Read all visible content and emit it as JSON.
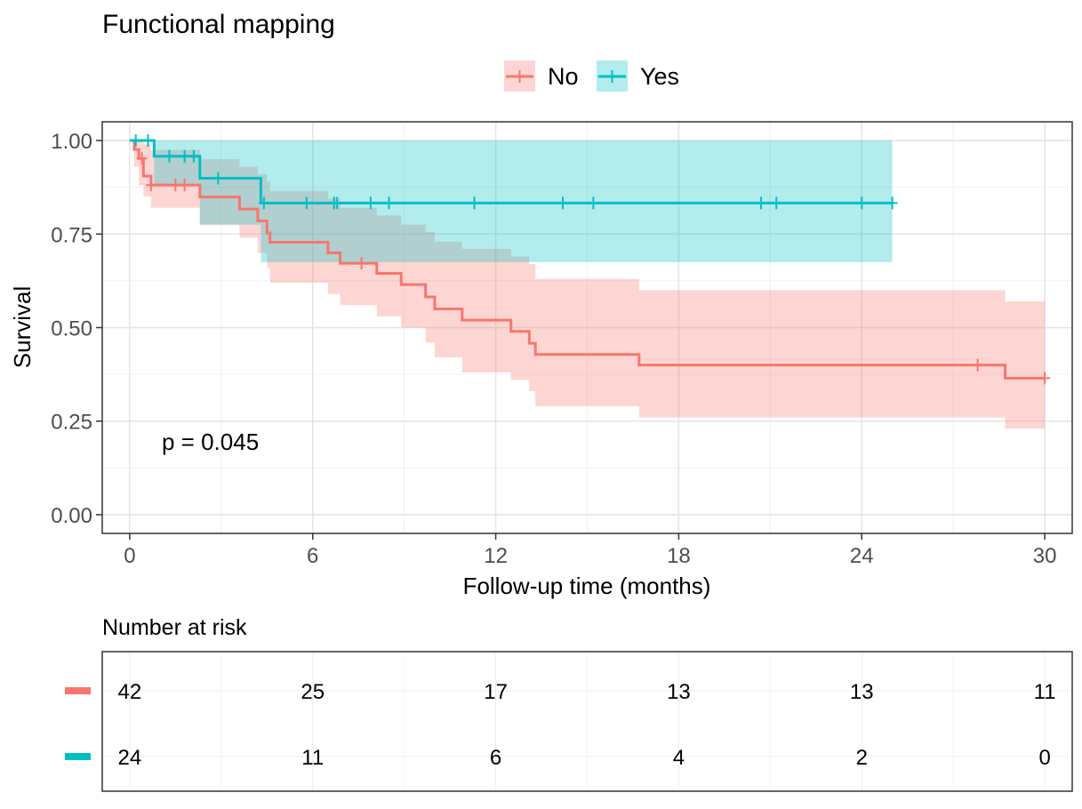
{
  "chart_data": {
    "type": "line",
    "title": "Functional mapping",
    "xlabel": "Follow-up time (months)",
    "ylabel": "Survival",
    "xlim": [
      -0.9,
      30.9
    ],
    "ylim": [
      -0.05,
      1.05
    ],
    "xticks": [
      0,
      6,
      12,
      18,
      24,
      30
    ],
    "xtick_labels": [
      "0",
      "6",
      "12",
      "18",
      "24",
      "30"
    ],
    "yticks": [
      0,
      0.25,
      0.5,
      0.75,
      1.0
    ],
    "ytick_labels": [
      "0.00",
      "0.25",
      "0.50",
      "0.75",
      "1.00"
    ],
    "grid": true,
    "legend_position": "top",
    "pvalue_text": "p = 0.045",
    "series": [
      {
        "name": "No",
        "color": "#F8766D",
        "steps": [
          [
            0,
            1.0
          ],
          [
            0.15,
            0.976
          ],
          [
            0.3,
            0.952
          ],
          [
            0.45,
            0.905
          ],
          [
            0.7,
            0.881
          ],
          [
            2.3,
            0.849
          ],
          [
            3.6,
            0.817
          ],
          [
            4.2,
            0.785
          ],
          [
            4.5,
            0.753
          ],
          [
            4.6,
            0.728
          ],
          [
            6.5,
            0.7
          ],
          [
            6.9,
            0.672
          ],
          [
            8.1,
            0.645
          ],
          [
            8.9,
            0.615
          ],
          [
            9.7,
            0.582
          ],
          [
            10.0,
            0.55
          ],
          [
            10.9,
            0.52
          ],
          [
            12.5,
            0.49
          ],
          [
            13.1,
            0.458
          ],
          [
            13.3,
            0.428
          ],
          [
            16.7,
            0.4
          ],
          [
            28.7,
            0.365
          ]
        ],
        "ci_lower": [
          [
            0,
            1.0
          ],
          [
            0.15,
            0.93
          ],
          [
            0.3,
            0.88
          ],
          [
            0.45,
            0.85
          ],
          [
            0.7,
            0.82
          ],
          [
            2.3,
            0.775
          ],
          [
            3.6,
            0.74
          ],
          [
            4.2,
            0.7
          ],
          [
            4.5,
            0.66
          ],
          [
            4.6,
            0.62
          ],
          [
            6.5,
            0.59
          ],
          [
            6.9,
            0.56
          ],
          [
            8.1,
            0.53
          ],
          [
            8.9,
            0.5
          ],
          [
            9.7,
            0.46
          ],
          [
            10.0,
            0.42
          ],
          [
            10.9,
            0.38
          ],
          [
            12.5,
            0.36
          ],
          [
            13.1,
            0.33
          ],
          [
            13.3,
            0.29
          ],
          [
            16.7,
            0.26
          ],
          [
            28.7,
            0.23
          ]
        ],
        "ci_upper": [
          [
            0,
            1.0
          ],
          [
            0.15,
            1.0
          ],
          [
            0.45,
            0.99
          ],
          [
            0.7,
            0.975
          ],
          [
            2.3,
            0.95
          ],
          [
            3.6,
            0.93
          ],
          [
            4.2,
            0.91
          ],
          [
            4.5,
            0.89
          ],
          [
            4.6,
            0.865
          ],
          [
            6.5,
            0.845
          ],
          [
            6.9,
            0.82
          ],
          [
            8.1,
            0.8
          ],
          [
            8.9,
            0.775
          ],
          [
            9.7,
            0.755
          ],
          [
            10.0,
            0.73
          ],
          [
            10.9,
            0.71
          ],
          [
            12.5,
            0.69
          ],
          [
            13.1,
            0.67
          ],
          [
            13.3,
            0.63
          ],
          [
            16.7,
            0.6
          ],
          [
            28.7,
            0.57
          ]
        ],
        "censored": [
          [
            0.4,
            0.952
          ],
          [
            0.7,
            0.881
          ],
          [
            1.5,
            0.881
          ],
          [
            1.8,
            0.881
          ],
          [
            7.6,
            0.672
          ],
          [
            27.8,
            0.4
          ],
          [
            30.0,
            0.365
          ]
        ],
        "end_x": 30.0
      },
      {
        "name": "Yes",
        "color": "#00BFC4",
        "steps": [
          [
            0,
            1.0
          ],
          [
            0.8,
            0.958
          ],
          [
            2.3,
            0.899
          ],
          [
            4.3,
            0.833
          ]
        ],
        "ci_lower": [
          [
            0,
            1.0
          ],
          [
            0.8,
            0.88
          ],
          [
            2.3,
            0.775
          ],
          [
            4.3,
            0.675
          ]
        ],
        "ci_upper": [
          [
            0,
            1.0
          ],
          [
            25.0,
            1.0
          ]
        ],
        "censored": [
          [
            0.2,
            1.0
          ],
          [
            0.6,
            1.0
          ],
          [
            1.3,
            0.958
          ],
          [
            1.8,
            0.958
          ],
          [
            2.1,
            0.958
          ],
          [
            2.9,
            0.899
          ],
          [
            4.4,
            0.833
          ],
          [
            5.8,
            0.833
          ],
          [
            6.7,
            0.833
          ],
          [
            6.8,
            0.833
          ],
          [
            7.9,
            0.833
          ],
          [
            8.5,
            0.833
          ],
          [
            11.3,
            0.833
          ],
          [
            14.2,
            0.833
          ],
          [
            15.2,
            0.833
          ],
          [
            20.7,
            0.833
          ],
          [
            21.2,
            0.833
          ],
          [
            24.0,
            0.833
          ],
          [
            25.0,
            0.833
          ]
        ],
        "end_x": 25.0
      }
    ]
  },
  "risk_table": {
    "title": "Number at risk",
    "times": [
      0,
      6,
      12,
      18,
      24,
      30
    ],
    "rows": [
      {
        "name": "No",
        "color": "#F8766D",
        "values": [
          "42",
          "25",
          "17",
          "13",
          "13",
          "11"
        ]
      },
      {
        "name": "Yes",
        "color": "#00BFC4",
        "values": [
          "24",
          "11",
          "6",
          "4",
          "2",
          "0"
        ]
      }
    ]
  }
}
